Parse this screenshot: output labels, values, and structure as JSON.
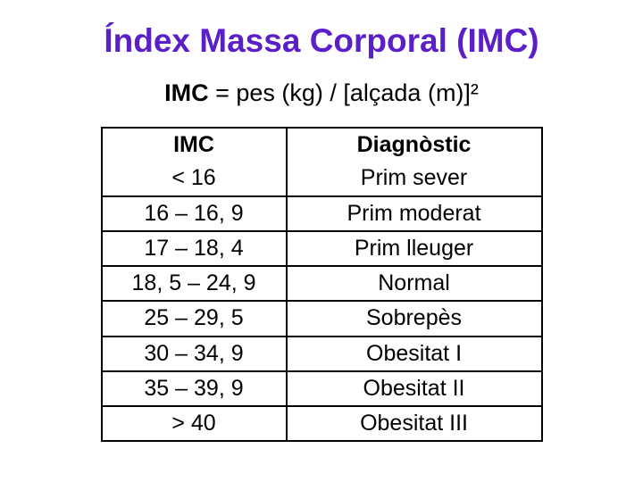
{
  "title": {
    "text": "Índex Massa Corporal (IMC)",
    "color": "#5a1fc9",
    "fontsize": 37
  },
  "formula": {
    "label": "IMC",
    "equals": " = pes (kg) / [alçada (m)]²",
    "fontsize": 27
  },
  "table": {
    "fontsize": 25,
    "border_color": "#000000",
    "columns": [
      "IMC",
      "Diagnòstic"
    ],
    "rows": [
      [
        "< 16",
        "Prim sever"
      ],
      [
        "16 – 16, 9",
        "Prim moderat"
      ],
      [
        "17 – 18, 4",
        "Prim lleuger"
      ],
      [
        "18, 5 – 24, 9",
        "Normal"
      ],
      [
        "25 – 29, 5",
        "Sobrepès"
      ],
      [
        "30 – 34, 9",
        "Obesitat I"
      ],
      [
        "35 – 39, 9",
        "Obesitat II"
      ],
      [
        "> 40",
        "Obesitat III"
      ]
    ]
  }
}
